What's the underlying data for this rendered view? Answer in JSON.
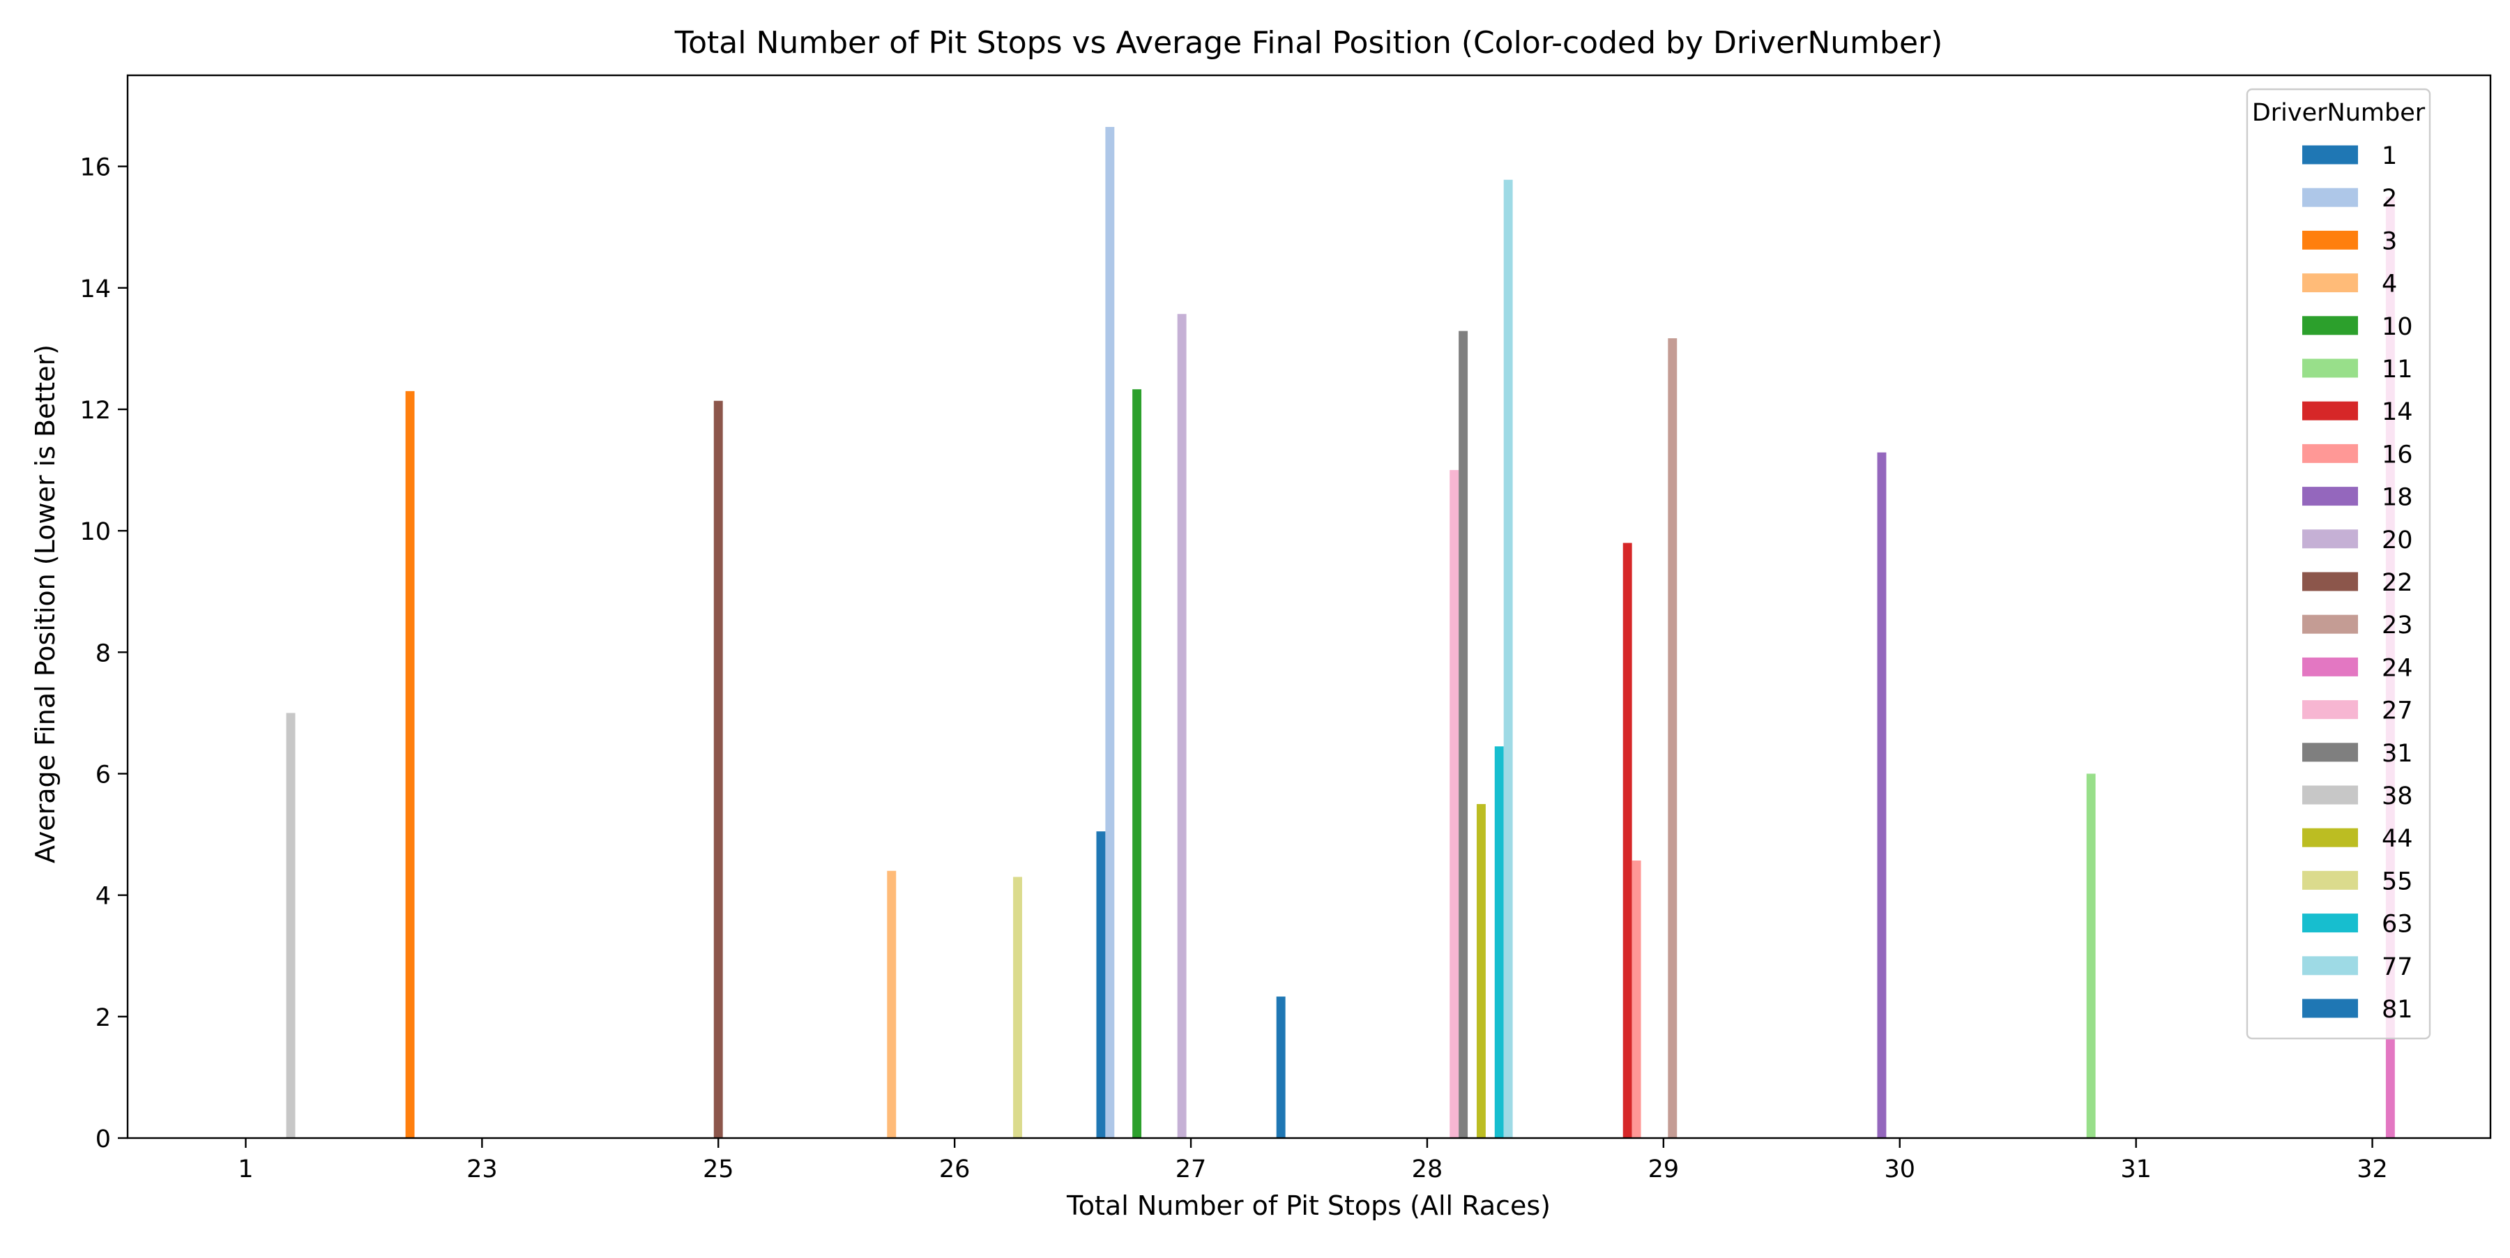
{
  "chart_data": {
    "type": "bar",
    "title": "Total Number of Pit Stops vs Average Final Position (Color-coded by DriverNumber)",
    "xlabel": "Total Number of Pit Stops (All Races)",
    "ylabel": "Average Final Position (Lower is Better)",
    "categories": [
      "1",
      "23",
      "25",
      "26",
      "27",
      "28",
      "29",
      "30",
      "31",
      "32"
    ],
    "ylim": [
      0,
      17.5
    ],
    "yticks": [
      0,
      2,
      4,
      6,
      8,
      10,
      12,
      14,
      16
    ],
    "legend": {
      "title": "DriverNumber",
      "placement": "top-right",
      "entries": [
        "1",
        "2",
        "3",
        "4",
        "10",
        "11",
        "14",
        "16",
        "18",
        "20",
        "22",
        "23",
        "24",
        "27",
        "31",
        "38",
        "44",
        "55",
        "63",
        "77",
        "81"
      ]
    },
    "colors": {
      "1": "#1f77b4",
      "2": "#aec7e8",
      "3": "#ff7f0e",
      "4": "#ffbb78",
      "10": "#2ca02c",
      "11": "#98df8a",
      "14": "#d62728",
      "16": "#ff9896",
      "18": "#9467bd",
      "20": "#c5b0d5",
      "22": "#8c564b",
      "23": "#c49c94",
      "24": "#e377c2",
      "27": "#f7b6d2",
      "31": "#7f7f7f",
      "38": "#c7c7c7",
      "44": "#bcbd22",
      "55": "#dbdb8d",
      "63": "#17becf",
      "77": "#9edae5",
      "81": "#1f77b4"
    },
    "series": [
      {
        "name": "1",
        "values": [
          null,
          null,
          null,
          null,
          5.05,
          null,
          null,
          null,
          null,
          null
        ]
      },
      {
        "name": "2",
        "values": [
          null,
          null,
          null,
          null,
          16.65,
          null,
          null,
          null,
          null,
          null
        ]
      },
      {
        "name": "3",
        "values": [
          null,
          12.3,
          null,
          null,
          null,
          null,
          null,
          null,
          null,
          null
        ]
      },
      {
        "name": "4",
        "values": [
          null,
          null,
          null,
          4.4,
          null,
          null,
          null,
          null,
          null,
          null
        ]
      },
      {
        "name": "10",
        "values": [
          null,
          null,
          null,
          null,
          12.33,
          null,
          null,
          null,
          null,
          null
        ]
      },
      {
        "name": "11",
        "values": [
          null,
          null,
          null,
          null,
          null,
          null,
          null,
          null,
          6.0,
          null
        ]
      },
      {
        "name": "14",
        "values": [
          null,
          null,
          null,
          null,
          null,
          null,
          9.8,
          null,
          null,
          null
        ]
      },
      {
        "name": "16",
        "values": [
          null,
          null,
          null,
          null,
          null,
          null,
          4.57,
          null,
          null,
          null
        ]
      },
      {
        "name": "18",
        "values": [
          null,
          null,
          null,
          null,
          null,
          null,
          null,
          11.29,
          null,
          null
        ]
      },
      {
        "name": "20",
        "values": [
          null,
          null,
          null,
          null,
          13.57,
          null,
          null,
          null,
          null,
          null
        ]
      },
      {
        "name": "22",
        "values": [
          null,
          null,
          12.14,
          null,
          null,
          null,
          null,
          null,
          null,
          null
        ]
      },
      {
        "name": "23",
        "values": [
          null,
          null,
          null,
          null,
          null,
          null,
          13.17,
          null,
          null,
          null
        ]
      },
      {
        "name": "24",
        "values": [
          null,
          null,
          null,
          null,
          null,
          null,
          null,
          null,
          null,
          15.5
        ]
      },
      {
        "name": "27",
        "values": [
          null,
          null,
          null,
          null,
          null,
          11.0,
          null,
          null,
          null,
          null
        ]
      },
      {
        "name": "31",
        "values": [
          null,
          null,
          null,
          null,
          null,
          13.29,
          null,
          null,
          null,
          null
        ]
      },
      {
        "name": "38",
        "values": [
          7.0,
          null,
          null,
          null,
          null,
          null,
          null,
          null,
          null,
          null
        ]
      },
      {
        "name": "44",
        "values": [
          null,
          null,
          null,
          null,
          null,
          5.5,
          null,
          null,
          null,
          null
        ]
      },
      {
        "name": "55",
        "values": [
          null,
          null,
          null,
          4.3,
          null,
          null,
          null,
          null,
          null,
          null
        ]
      },
      {
        "name": "63",
        "values": [
          null,
          null,
          null,
          null,
          null,
          6.45,
          null,
          null,
          null,
          null
        ]
      },
      {
        "name": "77",
        "values": [
          null,
          null,
          null,
          null,
          null,
          15.78,
          null,
          null,
          null,
          null
        ]
      },
      {
        "name": "81",
        "values": [
          null,
          null,
          null,
          null,
          2.33,
          null,
          null,
          null,
          null,
          null
        ]
      }
    ]
  }
}
